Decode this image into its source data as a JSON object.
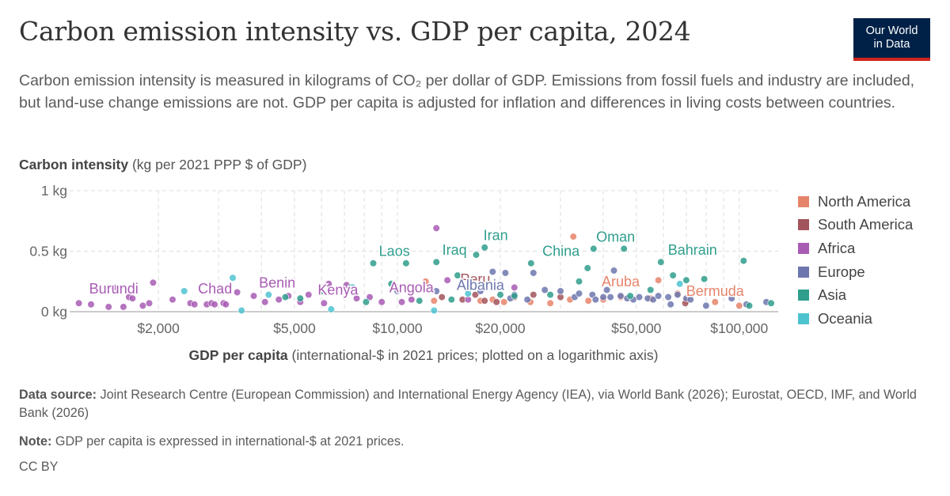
{
  "header": {
    "title": "Carbon emission intensity vs. GDP per capita, 2024",
    "subtitle": "Carbon emission intensity is measured in kilograms of CO₂ per dollar of GDP. Emissions from fossil fuels and industry are included, but land-use change emissions are not. GDP per capita is adjusted for inflation and differences in living costs between countries.",
    "logo_line1": "Our World",
    "logo_line2": "in Data"
  },
  "axes": {
    "y_title_bold": "Carbon intensity",
    "y_title_rest": " (kg per 2021 PPP $ of GDP)",
    "x_title_bold": "GDP per capita",
    "x_title_rest": " (international-$ in 2021 prices; plotted on a logarithmic axis)"
  },
  "footer": {
    "source_label": "Data source:",
    "source_text": " Joint Research Centre (European Commission) and International Energy Agency (IEA), via World Bank (2026); Eurostat, OECD, IMF, and World Bank (2026)",
    "note_label": "Note:",
    "note_text": " GDP per capita is expressed in international-$ at 2021 prices.",
    "license": "CC BY"
  },
  "chart_data": {
    "type": "scatter",
    "x_scale": "log",
    "xlim": [
      1100,
      130000
    ],
    "ylim": [
      0,
      1
    ],
    "grid": true,
    "legend_position": "right",
    "x_ticks": [
      {
        "value": 2000,
        "label": "$2,000"
      },
      {
        "value": 5000,
        "label": "$5,000"
      },
      {
        "value": 10000,
        "label": "$10,000"
      },
      {
        "value": 20000,
        "label": "$20,000"
      },
      {
        "value": 50000,
        "label": "$50,000"
      },
      {
        "value": 100000,
        "label": "$100,000"
      }
    ],
    "x_minor_grid": [
      1000,
      3000,
      4000,
      6000,
      7000,
      8000,
      9000,
      30000,
      40000,
      60000,
      70000,
      80000,
      90000
    ],
    "y_ticks": [
      {
        "value": 0,
        "label": "0 kg"
      },
      {
        "value": 0.5,
        "label": "0.5 kg"
      },
      {
        "value": 1,
        "label": "1 kg"
      }
    ],
    "series": [
      {
        "name": "North America",
        "color": "#e6846b",
        "points": [
          [
            12100,
            0.25
          ],
          [
            12800,
            0.09
          ],
          [
            17500,
            0.09
          ],
          [
            19000,
            0.1
          ],
          [
            20500,
            0.08
          ],
          [
            24500,
            0.08
          ],
          [
            28000,
            0.07
          ],
          [
            32000,
            0.1
          ],
          [
            32700,
            0.62
          ],
          [
            36200,
            0.09
          ],
          [
            40000,
            0.1
          ],
          [
            45000,
            0.12
          ],
          [
            55000,
            0.11
          ],
          [
            58000,
            0.26
          ],
          [
            66000,
            0.15
          ],
          [
            70000,
            0.09
          ],
          [
            74000,
            0.17
          ],
          [
            85000,
            0.08
          ],
          [
            100000,
            0.05
          ]
        ],
        "labels": [
          {
            "text": "Aruba",
            "x": 45000,
            "y": 0.21
          },
          {
            "text": "Bermuda",
            "x": 85000,
            "y": 0.13
          }
        ]
      },
      {
        "name": "South America",
        "color": "#a2545c",
        "points": [
          [
            13500,
            0.12
          ],
          [
            15500,
            0.1
          ],
          [
            16900,
            0.14
          ],
          [
            18000,
            0.09
          ],
          [
            19500,
            0.08
          ],
          [
            22000,
            0.12
          ],
          [
            25000,
            0.14
          ],
          [
            30000,
            0.12
          ],
          [
            69500,
            0.07
          ]
        ],
        "labels": [
          {
            "text": "Peru",
            "x": 16900,
            "y": 0.23
          }
        ]
      },
      {
        "name": "Africa",
        "color": "#a85cb4",
        "points": [
          [
            1170,
            0.07
          ],
          [
            1270,
            0.06
          ],
          [
            1430,
            0.04
          ],
          [
            1480,
            0.2
          ],
          [
            1580,
            0.04
          ],
          [
            1640,
            0.12
          ],
          [
            1680,
            0.11
          ],
          [
            1800,
            0.05
          ],
          [
            1880,
            0.07
          ],
          [
            1930,
            0.24
          ],
          [
            2200,
            0.1
          ],
          [
            2480,
            0.07
          ],
          [
            2550,
            0.06
          ],
          [
            2770,
            0.06
          ],
          [
            2860,
            0.07
          ],
          [
            2920,
            0.06
          ],
          [
            3100,
            0.07
          ],
          [
            3150,
            0.06
          ],
          [
            3400,
            0.16
          ],
          [
            3800,
            0.13
          ],
          [
            4100,
            0.08
          ],
          [
            4500,
            0.1
          ],
          [
            4800,
            0.13
          ],
          [
            5200,
            0.08
          ],
          [
            5500,
            0.14
          ],
          [
            6100,
            0.07
          ],
          [
            6300,
            0.23
          ],
          [
            7100,
            0.22
          ],
          [
            7600,
            0.11
          ],
          [
            8300,
            0.12
          ],
          [
            9000,
            0.08
          ],
          [
            10300,
            0.08
          ],
          [
            11000,
            0.1
          ],
          [
            13000,
            0.69
          ],
          [
            14000,
            0.26
          ],
          [
            16100,
            0.1
          ],
          [
            22000,
            0.2
          ]
        ],
        "labels": [
          {
            "text": "Burundi",
            "x": 1480,
            "y": 0.15
          },
          {
            "text": "Chad",
            "x": 2930,
            "y": 0.15
          },
          {
            "text": "Benin",
            "x": 4450,
            "y": 0.2
          },
          {
            "text": "Kenya",
            "x": 6700,
            "y": 0.14
          },
          {
            "text": "Angola",
            "x": 11000,
            "y": 0.16
          }
        ]
      },
      {
        "name": "Europe",
        "color": "#6d77ae",
        "points": [
          [
            10000,
            0.17
          ],
          [
            13000,
            0.17
          ],
          [
            17500,
            0.17
          ],
          [
            19000,
            0.33
          ],
          [
            20700,
            0.32
          ],
          [
            21400,
            0.11
          ],
          [
            22000,
            0.14
          ],
          [
            24000,
            0.1
          ],
          [
            25000,
            0.32
          ],
          [
            27000,
            0.18
          ],
          [
            30000,
            0.17
          ],
          [
            33000,
            0.12
          ],
          [
            34000,
            0.15
          ],
          [
            37200,
            0.14
          ],
          [
            38000,
            0.1
          ],
          [
            40000,
            0.12
          ],
          [
            41000,
            0.18
          ],
          [
            42000,
            0.12
          ],
          [
            43000,
            0.34
          ],
          [
            45000,
            0.13
          ],
          [
            47000,
            0.11
          ],
          [
            49000,
            0.1
          ],
          [
            51000,
            0.12
          ],
          [
            54000,
            0.11
          ],
          [
            56000,
            0.1
          ],
          [
            58000,
            0.13
          ],
          [
            62000,
            0.12
          ],
          [
            63000,
            0.06
          ],
          [
            66000,
            0.14
          ],
          [
            70000,
            0.11
          ],
          [
            72000,
            0.1
          ],
          [
            80000,
            0.05
          ],
          [
            95000,
            0.11
          ],
          [
            105000,
            0.06
          ],
          [
            120000,
            0.08
          ]
        ],
        "labels": [
          {
            "text": "Albania",
            "x": 17500,
            "y": 0.18
          }
        ]
      },
      {
        "name": "Asia",
        "color": "#2f9e8c",
        "points": [
          [
            4700,
            0.12
          ],
          [
            5200,
            0.11
          ],
          [
            6000,
            0.17
          ],
          [
            7300,
            0.2
          ],
          [
            8100,
            0.08
          ],
          [
            8500,
            0.4
          ],
          [
            9600,
            0.23
          ],
          [
            10600,
            0.4
          ],
          [
            11600,
            0.09
          ],
          [
            13000,
            0.41
          ],
          [
            14400,
            0.1
          ],
          [
            15000,
            0.3
          ],
          [
            17000,
            0.47
          ],
          [
            18000,
            0.53
          ],
          [
            20000,
            0.14
          ],
          [
            22000,
            0.13
          ],
          [
            24600,
            0.4
          ],
          [
            28000,
            0.14
          ],
          [
            34000,
            0.25
          ],
          [
            36000,
            0.36
          ],
          [
            37500,
            0.52
          ],
          [
            46000,
            0.52
          ],
          [
            48000,
            0.13
          ],
          [
            55000,
            0.18
          ],
          [
            59000,
            0.41
          ],
          [
            64000,
            0.3
          ],
          [
            70000,
            0.26
          ],
          [
            79000,
            0.27
          ],
          [
            103000,
            0.42
          ],
          [
            107000,
            0.05
          ],
          [
            124000,
            0.07
          ]
        ],
        "labels": [
          {
            "text": "Laos",
            "x": 9800,
            "y": 0.46
          },
          {
            "text": "Iraq",
            "x": 14700,
            "y": 0.47
          },
          {
            "text": "Iran",
            "x": 19400,
            "y": 0.59
          },
          {
            "text": "China",
            "x": 30100,
            "y": 0.46
          },
          {
            "text": "Oman",
            "x": 43500,
            "y": 0.58
          },
          {
            "text": "Bahrain",
            "x": 73000,
            "y": 0.47
          }
        ]
      },
      {
        "name": "Oceania",
        "color": "#4ec3d0",
        "points": [
          [
            2380,
            0.17
          ],
          [
            3300,
            0.28
          ],
          [
            3500,
            0.01
          ],
          [
            4200,
            0.14
          ],
          [
            6400,
            0.02
          ],
          [
            7400,
            0.2
          ],
          [
            12800,
            0.01
          ],
          [
            16100,
            0.15
          ],
          [
            67000,
            0.23
          ]
        ],
        "labels": []
      }
    ]
  }
}
